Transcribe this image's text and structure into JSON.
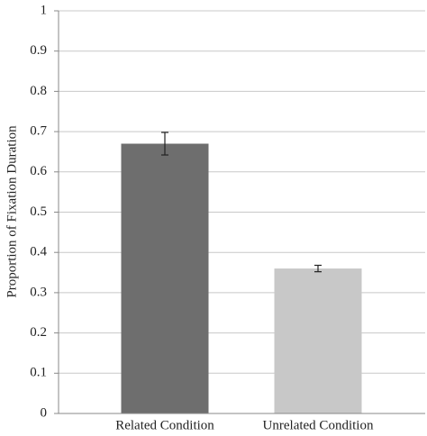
{
  "chart_data": {
    "type": "bar",
    "y_label": "Proportion of Fixation Duration",
    "categories": [
      "Related Condition",
      "Unrelated Condition"
    ],
    "values": [
      0.67,
      0.36
    ],
    "errors": [
      0.028,
      0.008
    ],
    "colors": [
      "#6e6e6e",
      "#c8c8c8"
    ],
    "ylim": [
      0,
      1
    ],
    "yticks": [
      0,
      0.1,
      0.2,
      0.3,
      0.4,
      0.5,
      0.6,
      0.7,
      0.8,
      0.9,
      1
    ],
    "grid": true
  }
}
